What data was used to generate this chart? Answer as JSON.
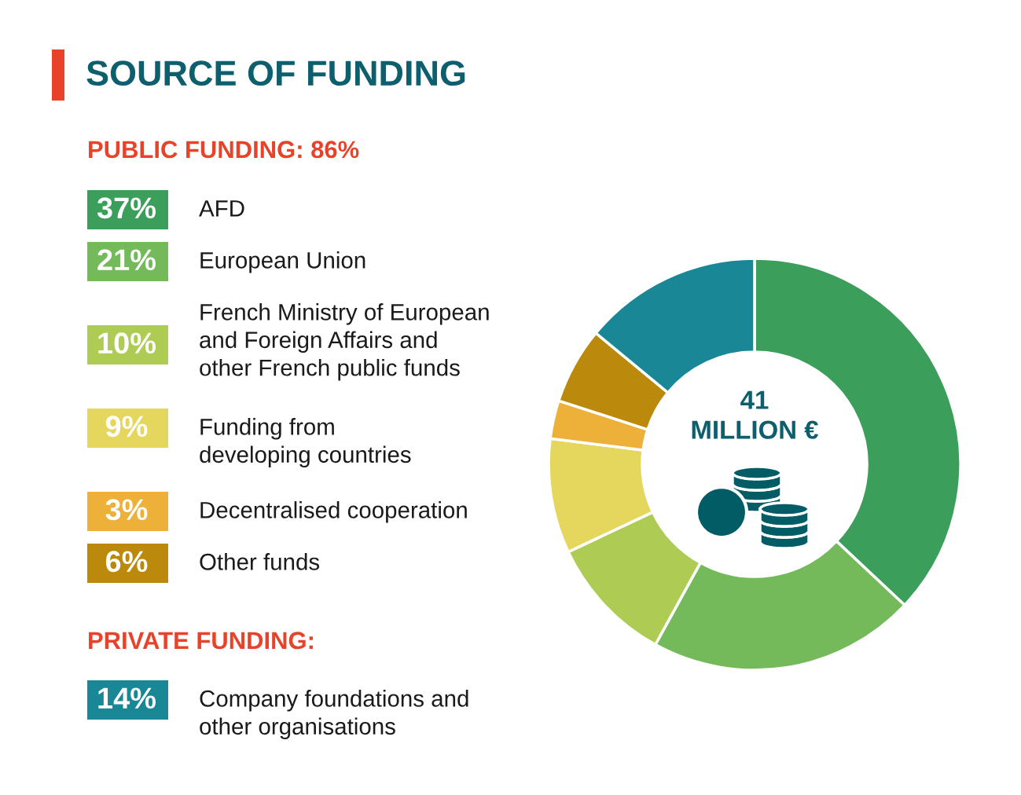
{
  "chart_data": {
    "type": "donut",
    "title": "SOURCE OF FUNDING",
    "categories": [
      "AFD",
      "European Union",
      "French Ministry of European\nand Foreign Affairs and\nother French public funds",
      "Funding from\ndeveloping countries",
      "Decentralised cooperation",
      "Other funds",
      "Company foundations and\nother organisations"
    ],
    "values": [
      37,
      21,
      10,
      9,
      3,
      6,
      14
    ],
    "value_labels": [
      "37%",
      "21%",
      "10%",
      "9%",
      "3%",
      "6%",
      "14%"
    ],
    "colors": [
      "#3b9e5b",
      "#74b95a",
      "#aecb53",
      "#e5d65e",
      "#edb13a",
      "#bb8a0c",
      "#198796"
    ],
    "legend": "left",
    "annotations": [
      "PUBLIC FUNDING: 86%",
      "PRIVATE FUNDING:",
      "41\nMILLION €"
    ]
  }
}
